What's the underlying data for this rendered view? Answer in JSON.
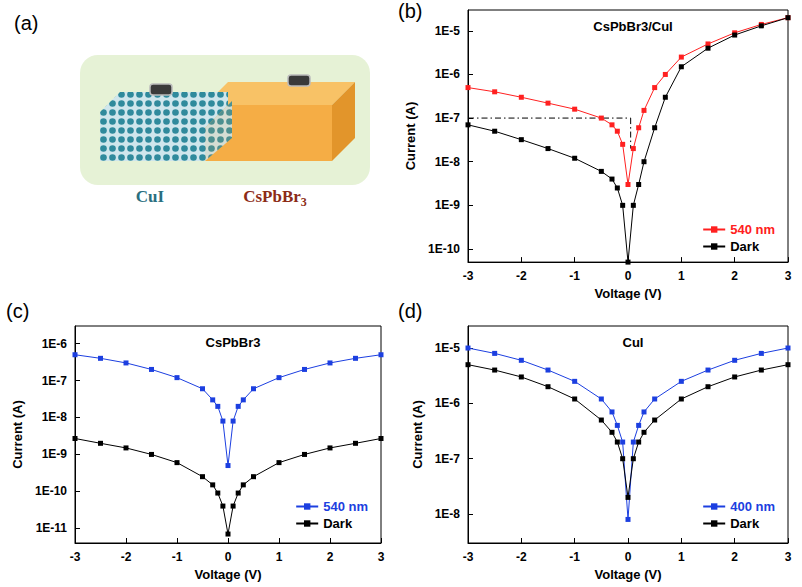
{
  "diagram": {
    "label": "(a)",
    "materials": [
      "CuI",
      "CsPbBr3"
    ]
  },
  "chart_data": [
    {
      "label": "(b)",
      "type": "line",
      "title": "CsPbBr3/CuI",
      "xlabel": "Voltage (V)",
      "ylabel": "Current (A)",
      "log": "y",
      "legend": "lower right",
      "marker": "square",
      "x": [
        -3,
        -2.5,
        -2,
        -1.5,
        -1,
        -0.5,
        -0.3,
        -0.2,
        -0.1,
        0,
        0.1,
        0.2,
        0.3,
        0.5,
        0.7,
        1,
        1.5,
        2,
        2.5,
        3
      ],
      "xlim": [
        -3,
        3
      ],
      "xticks": [
        -3,
        -2,
        -1,
        0,
        1,
        2,
        3
      ],
      "ylim": [
        5e-11,
        3e-05
      ],
      "yticks": [
        {
          "value": 1e-10,
          "label": "1E-10"
        },
        {
          "value": 1e-09,
          "label": "1E-9"
        },
        {
          "value": 1e-08,
          "label": "1E-8"
        },
        {
          "value": 1e-07,
          "label": "1E-7"
        },
        {
          "value": 1e-06,
          "label": "1E-6"
        },
        {
          "value": 1e-05,
          "label": "1E-5"
        }
      ],
      "series": [
        {
          "name": "540 nm",
          "color": "#ff2020",
          "values": [
            5e-07,
            4e-07,
            3e-07,
            2.2e-07,
            1.6e-07,
            1e-07,
            7e-08,
            5e-08,
            2.5e-08,
            3e-09,
            2e-08,
            6e-08,
            1.5e-07,
            5e-07,
            1e-06,
            2.5e-06,
            5e-06,
            9e-06,
            1.4e-05,
            2e-05
          ]
        },
        {
          "name": "Dark",
          "color": "#000000",
          "values": [
            7e-08,
            5e-08,
            3.2e-08,
            2e-08,
            1.2e-08,
            6e-09,
            4e-09,
            2.5e-09,
            1e-09,
            5e-11,
            1e-09,
            3e-09,
            1e-08,
            6e-08,
            3e-07,
            1.5e-06,
            4e-06,
            8e-06,
            1.3e-05,
            2e-05
          ]
        }
      ],
      "annotations": [
        {
          "x": [
            -3,
            0.05
          ],
          "y": [
            1e-07,
            1e-07
          ],
          "line_style": "dashdot"
        },
        {
          "x": [
            0.05,
            0.05
          ],
          "y": [
            1e-07,
            2e-08
          ],
          "line_style": "dashdot"
        }
      ]
    },
    {
      "label": "(c)",
      "type": "line",
      "title": "CsPbBr3",
      "xlabel": "Voltage (V)",
      "ylabel": "Current (A)",
      "log": "y",
      "legend": "lower right",
      "marker": "square",
      "x": [
        -3,
        -2.5,
        -2,
        -1.5,
        -1,
        -0.5,
        -0.3,
        -0.2,
        -0.1,
        0,
        0.1,
        0.2,
        0.3,
        0.5,
        1,
        1.5,
        2,
        2.5,
        3
      ],
      "xlim": [
        -3,
        3
      ],
      "xticks": [
        -3,
        -2,
        -1,
        0,
        1,
        2,
        3
      ],
      "ylim": [
        4e-12,
        3e-06
      ],
      "yticks": [
        {
          "value": 1e-11,
          "label": "1E-11"
        },
        {
          "value": 1e-10,
          "label": "1E-10"
        },
        {
          "value": 1e-09,
          "label": "1E-9"
        },
        {
          "value": 1e-08,
          "label": "1E-8"
        },
        {
          "value": 1e-07,
          "label": "1E-7"
        },
        {
          "value": 1e-06,
          "label": "1E-6"
        }
      ],
      "series": [
        {
          "name": "540 nm",
          "color": "#1c3fe0",
          "values": [
            5e-07,
            4e-07,
            3e-07,
            2e-07,
            1.2e-07,
            6e-08,
            3e-08,
            2e-08,
            8e-09,
            5e-10,
            8e-09,
            2e-08,
            3e-08,
            6e-08,
            1.2e-07,
            2e-07,
            3e-07,
            4e-07,
            5e-07
          ]
        },
        {
          "name": "Dark",
          "color": "#000000",
          "values": [
            2.7e-09,
            2e-09,
            1.5e-09,
            1e-09,
            6e-10,
            2.5e-10,
            1.5e-10,
            9e-11,
            4e-11,
            7e-12,
            4e-11,
            9e-11,
            1.5e-10,
            2.5e-10,
            6e-10,
            1e-09,
            1.5e-09,
            2e-09,
            2.7e-09
          ]
        }
      ]
    },
    {
      "label": "(d)",
      "type": "line",
      "title": "CuI",
      "xlabel": "Voltage (V)",
      "ylabel": "Current (A)",
      "log": "y",
      "legend": "lower right",
      "marker": "square",
      "x": [
        -3,
        -2.5,
        -2,
        -1.5,
        -1,
        -0.5,
        -0.3,
        -0.2,
        -0.1,
        0,
        0.1,
        0.2,
        0.3,
        0.5,
        1,
        1.5,
        2,
        2.5,
        3
      ],
      "xlim": [
        -3,
        3
      ],
      "xticks": [
        -3,
        -2,
        -1,
        0,
        1,
        2,
        3
      ],
      "ylim": [
        3e-09,
        2.5e-05
      ],
      "yticks": [
        {
          "value": 1e-08,
          "label": "1E-8"
        },
        {
          "value": 1e-07,
          "label": "1E-7"
        },
        {
          "value": 1e-06,
          "label": "1E-6"
        },
        {
          "value": 1e-05,
          "label": "1E-5"
        }
      ],
      "series": [
        {
          "name": "400 nm",
          "color": "#1c3fe0",
          "values": [
            1e-05,
            8e-06,
            6e-06,
            4e-06,
            2.5e-06,
            1.2e-06,
            7e-07,
            4e-07,
            2e-07,
            8e-09,
            2e-07,
            4e-07,
            7e-07,
            1.2e-06,
            2.5e-06,
            4e-06,
            6e-06,
            8e-06,
            1e-05
          ]
        },
        {
          "name": "Dark",
          "color": "#000000",
          "values": [
            5e-06,
            4e-06,
            3e-06,
            2e-06,
            1.2e-06,
            5e-07,
            3e-07,
            2e-07,
            1e-07,
            2e-08,
            1e-07,
            2e-07,
            3e-07,
            5e-07,
            1.2e-06,
            2e-06,
            3e-06,
            4e-06,
            5e-06
          ]
        }
      ]
    }
  ]
}
